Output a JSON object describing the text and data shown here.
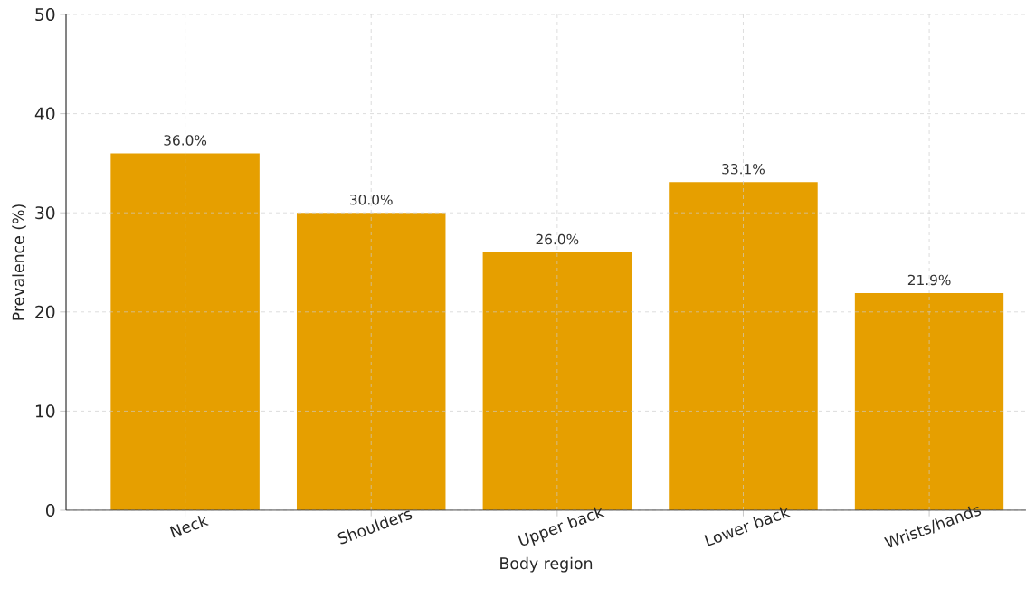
{
  "chart_data": {
    "type": "bar",
    "xlabel": "Body region",
    "ylabel": "Prevalence (%)",
    "categories": [
      "Neck",
      "Shoulders",
      "Upper back",
      "Lower back",
      "Wrists/hands"
    ],
    "values": [
      36.0,
      30.0,
      26.0,
      33.1,
      21.9
    ],
    "value_labels": [
      "36.0%",
      "30.0%",
      "26.0%",
      "33.1%",
      "21.9%"
    ],
    "color": "#e69f00",
    "ylim": [
      0,
      50
    ],
    "yticks": [
      0,
      10,
      20,
      30,
      40,
      50
    ],
    "grid": true
  }
}
